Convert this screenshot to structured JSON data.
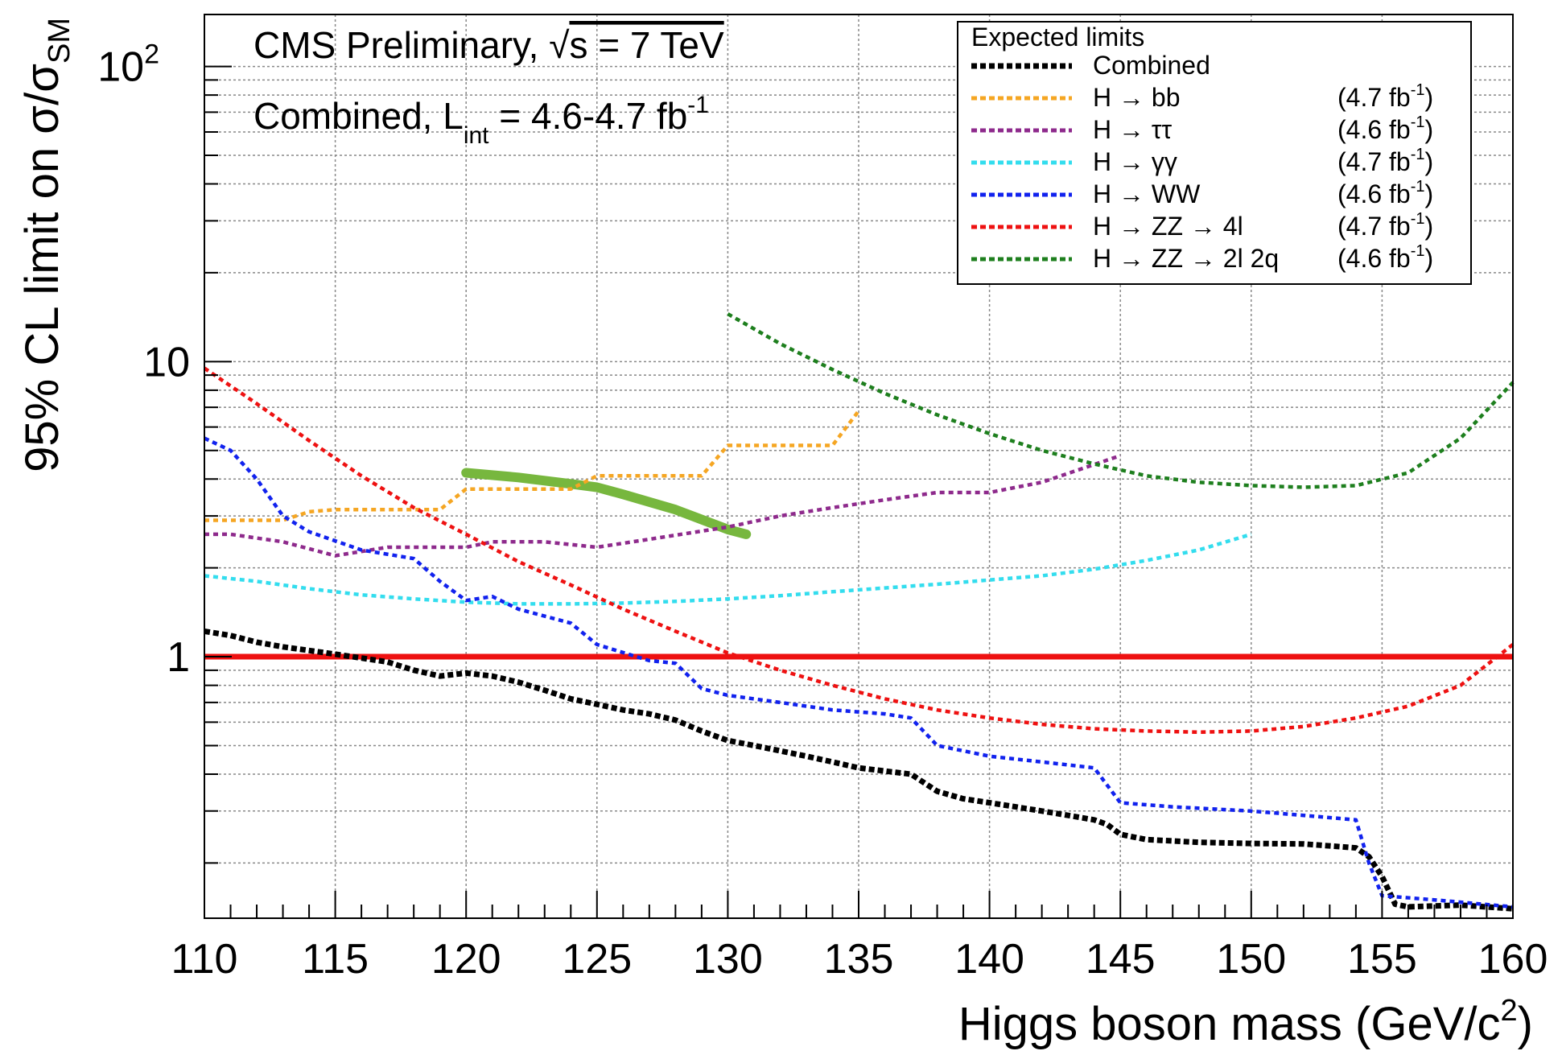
{
  "chart_data": {
    "type": "line",
    "title_line1": "CMS Preliminary, ",
    "sqrt_symbol": "√",
    "title_s": "s = 7 TeV",
    "title_line2_prefix": "Combined, L",
    "title_line2_sub": "int",
    "title_line2_mid": " = 4.6-4.7 fb",
    "title_line2_sup": "-1",
    "xlabel_prefix": "Higgs boson mass (GeV/c",
    "xlabel_sup": "2",
    "xlabel_suffix": ")",
    "ylabel_prefix": "95% CL limit on σ/σ",
    "ylabel_sub": "SM",
    "x_range": [
      110,
      160
    ],
    "y_range": [
      0.13,
      150
    ],
    "y_scale": "log",
    "grid": true,
    "x_ticks": [
      "110",
      "115",
      "120",
      "125",
      "130",
      "135",
      "140",
      "145",
      "150",
      "155",
      "160"
    ],
    "y_ticks": [
      {
        "value": 1,
        "base": "1",
        "exp": ""
      },
      {
        "value": 10,
        "base": "10",
        "exp": ""
      },
      {
        "value": 100,
        "base": "10",
        "exp": "2"
      }
    ],
    "reference_line": {
      "y": 1,
      "color": "#ee1111"
    },
    "legend": {
      "title": "Expected limits",
      "placement": "top-right",
      "sup": "-1"
    },
    "series": [
      {
        "name": "Combined",
        "lumi_base": "",
        "color": "#000000",
        "points": [
          [
            110,
            1.22
          ],
          [
            111,
            1.18
          ],
          [
            112,
            1.12
          ],
          [
            113,
            1.08
          ],
          [
            114,
            1.05
          ],
          [
            115,
            1.02
          ],
          [
            116,
            0.99
          ],
          [
            117,
            0.96
          ],
          [
            118,
            0.9
          ],
          [
            119,
            0.86
          ],
          [
            120,
            0.88
          ],
          [
            121,
            0.86
          ],
          [
            122,
            0.82
          ],
          [
            123,
            0.77
          ],
          [
            124,
            0.72
          ],
          [
            125,
            0.69
          ],
          [
            126,
            0.66
          ],
          [
            127,
            0.64
          ],
          [
            128,
            0.61
          ],
          [
            129,
            0.56
          ],
          [
            130,
            0.52
          ],
          [
            131,
            0.5
          ],
          [
            132,
            0.48
          ],
          [
            133,
            0.46
          ],
          [
            134,
            0.44
          ],
          [
            135,
            0.42
          ],
          [
            136,
            0.41
          ],
          [
            137,
            0.4
          ],
          [
            138,
            0.35
          ],
          [
            139,
            0.33
          ],
          [
            140,
            0.32
          ],
          [
            141,
            0.31
          ],
          [
            142,
            0.3
          ],
          [
            143,
            0.29
          ],
          [
            144,
            0.28
          ],
          [
            144.5,
            0.27
          ],
          [
            145,
            0.25
          ],
          [
            146,
            0.24
          ],
          [
            148,
            0.235
          ],
          [
            150,
            0.233
          ],
          [
            152,
            0.232
          ],
          [
            154,
            0.225
          ],
          [
            154.5,
            0.21
          ],
          [
            155,
            0.18
          ],
          [
            155.5,
            0.145
          ],
          [
            156,
            0.142
          ],
          [
            158,
            0.144
          ],
          [
            160,
            0.14
          ]
        ]
      },
      {
        "name": "H → bb",
        "lumi_base": "(4.7 fb",
        "color": "#f5a623",
        "points": [
          [
            110,
            2.9
          ],
          [
            113,
            2.9
          ],
          [
            114,
            3.1
          ],
          [
            115,
            3.15
          ],
          [
            119,
            3.15
          ],
          [
            120,
            3.7
          ],
          [
            124,
            3.7
          ],
          [
            125,
            4.1
          ],
          [
            129,
            4.1
          ],
          [
            130,
            5.2
          ],
          [
            134,
            5.2
          ],
          [
            135,
            6.8
          ]
        ]
      },
      {
        "name": "H → ττ",
        "lumi_base": "(4.6 fb",
        "color": "#8e2a8c",
        "points": [
          [
            110,
            2.6
          ],
          [
            111,
            2.6
          ],
          [
            113,
            2.45
          ],
          [
            115,
            2.2
          ],
          [
            117,
            2.35
          ],
          [
            120,
            2.35
          ],
          [
            121,
            2.45
          ],
          [
            123,
            2.45
          ],
          [
            125,
            2.35
          ],
          [
            127,
            2.5
          ],
          [
            130,
            2.75
          ],
          [
            132,
            3.0
          ],
          [
            134,
            3.2
          ],
          [
            136,
            3.4
          ],
          [
            138,
            3.6
          ],
          [
            140,
            3.6
          ],
          [
            142,
            3.9
          ],
          [
            145,
            4.8
          ]
        ]
      },
      {
        "name": "H → γγ",
        "lumi_base": "(4.7 fb",
        "color": "#33ddee",
        "points": [
          [
            110,
            1.88
          ],
          [
            112,
            1.8
          ],
          [
            114,
            1.7
          ],
          [
            116,
            1.62
          ],
          [
            118,
            1.57
          ],
          [
            120,
            1.53
          ],
          [
            122,
            1.51
          ],
          [
            124,
            1.51
          ],
          [
            126,
            1.52
          ],
          [
            128,
            1.54
          ],
          [
            130,
            1.57
          ],
          [
            132,
            1.61
          ],
          [
            134,
            1.66
          ],
          [
            136,
            1.71
          ],
          [
            138,
            1.76
          ],
          [
            140,
            1.82
          ],
          [
            142,
            1.88
          ],
          [
            144,
            1.98
          ],
          [
            146,
            2.12
          ],
          [
            148,
            2.3
          ],
          [
            150,
            2.6
          ]
        ]
      },
      {
        "name": "H → WW",
        "lumi_base": "(4.6 fb",
        "color": "#1122ee",
        "points": [
          [
            110,
            5.5
          ],
          [
            111,
            5.0
          ],
          [
            112,
            4.0
          ],
          [
            113,
            3.0
          ],
          [
            114,
            2.65
          ],
          [
            116,
            2.3
          ],
          [
            118,
            2.15
          ],
          [
            119,
            1.8
          ],
          [
            120,
            1.55
          ],
          [
            121,
            1.6
          ],
          [
            122,
            1.45
          ],
          [
            124,
            1.3
          ],
          [
            125,
            1.1
          ],
          [
            127,
            0.97
          ],
          [
            128,
            0.95
          ],
          [
            129,
            0.78
          ],
          [
            130,
            0.74
          ],
          [
            132,
            0.7
          ],
          [
            134,
            0.66
          ],
          [
            136,
            0.64
          ],
          [
            137,
            0.62
          ],
          [
            138,
            0.5
          ],
          [
            140,
            0.46
          ],
          [
            142,
            0.44
          ],
          [
            144,
            0.42
          ],
          [
            145,
            0.32
          ],
          [
            147,
            0.31
          ],
          [
            150,
            0.3
          ],
          [
            152,
            0.29
          ],
          [
            154,
            0.28
          ],
          [
            154.5,
            0.2
          ],
          [
            155,
            0.155
          ],
          [
            157,
            0.15
          ],
          [
            160,
            0.142
          ]
        ]
      },
      {
        "name": "H → ZZ → 4l",
        "lumi_base": "(4.7 fb",
        "color": "#ee1111",
        "points": [
          [
            110,
            9.5
          ],
          [
            112,
            7.2
          ],
          [
            114,
            5.4
          ],
          [
            116,
            4.1
          ],
          [
            118,
            3.2
          ],
          [
            120,
            2.6
          ],
          [
            122,
            2.1
          ],
          [
            124,
            1.75
          ],
          [
            126,
            1.45
          ],
          [
            128,
            1.22
          ],
          [
            130,
            1.03
          ],
          [
            132,
            0.9
          ],
          [
            134,
            0.8
          ],
          [
            136,
            0.72
          ],
          [
            138,
            0.66
          ],
          [
            140,
            0.62
          ],
          [
            142,
            0.59
          ],
          [
            144,
            0.57
          ],
          [
            146,
            0.56
          ],
          [
            148,
            0.555
          ],
          [
            150,
            0.56
          ],
          [
            152,
            0.58
          ],
          [
            154,
            0.62
          ],
          [
            156,
            0.68
          ],
          [
            158,
            0.8
          ],
          [
            160,
            1.1
          ]
        ]
      },
      {
        "name": "H → ZZ → 2l 2q",
        "lumi_base": "(4.6 fb",
        "color": "#1e7f1e",
        "points": [
          [
            130,
            14.5
          ],
          [
            132,
            11.5
          ],
          [
            134,
            9.4
          ],
          [
            136,
            7.8
          ],
          [
            138,
            6.6
          ],
          [
            140,
            5.7
          ],
          [
            142,
            5.0
          ],
          [
            144,
            4.5
          ],
          [
            146,
            4.1
          ],
          [
            148,
            3.9
          ],
          [
            150,
            3.8
          ],
          [
            152,
            3.75
          ],
          [
            154,
            3.8
          ],
          [
            156,
            4.2
          ],
          [
            158,
            5.5
          ],
          [
            160,
            8.5
          ]
        ]
      }
    ],
    "band": {
      "color": "#77b73e",
      "points": [
        [
          120,
          4.2
        ],
        [
          122,
          4.05
        ],
        [
          124,
          3.85
        ],
        [
          125,
          3.75
        ],
        [
          126,
          3.55
        ],
        [
          128,
          3.15
        ],
        [
          130,
          2.7
        ],
        [
          130.7,
          2.6
        ]
      ]
    }
  }
}
